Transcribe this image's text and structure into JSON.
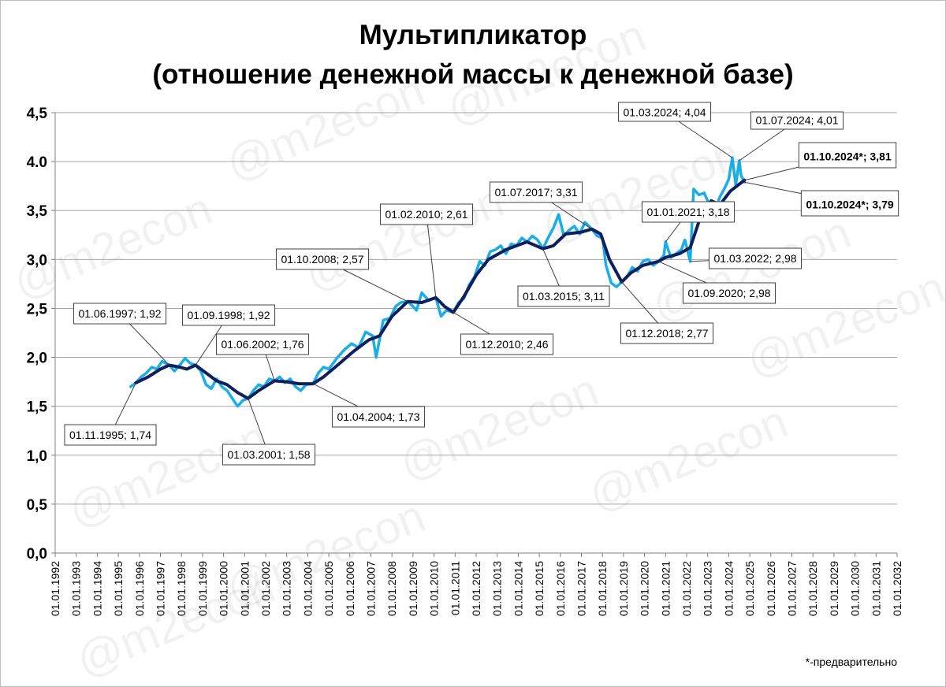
{
  "colors": {
    "raw_series": "#1aaee8",
    "trend_series": "#0e1f5e",
    "grid": "#a6a6a6",
    "axis": "#808080",
    "highlight_text": "#1aaee8"
  },
  "watermark": "@m2econ",
  "footnote": "*-предварительно",
  "chart_data": {
    "type": "line",
    "title": "Мультипликатор",
    "subtitle": "(отношение денежной массы к денежной базе)",
    "xlabel": "",
    "ylabel": "",
    "ylim": [
      0,
      4.5
    ],
    "xlim": [
      "01.01.1992",
      "01.01.2032"
    ],
    "grid": true,
    "legend": "none",
    "y_ticks": [
      "0,0",
      "0,5",
      "1,0",
      "1,5",
      "2,0",
      "2,5",
      "3,0",
      "3,5",
      "4.0",
      "4,5"
    ],
    "x_ticks": [
      "01.01.1992",
      "01.01.1993",
      "01.01.1994",
      "01.01.1995",
      "01.01.1996",
      "01.01.1997",
      "01.01.1998",
      "01.01.1999",
      "01.01.2000",
      "01.01.2001",
      "01.01.2002",
      "01.01.2003",
      "01.01.2004",
      "01.01.2005",
      "01.01.2006",
      "01.01.2007",
      "01.01.2008",
      "01.01.2009",
      "01.01.2010",
      "01.01.2011",
      "01.01.2012",
      "01.01.2013",
      "01.01.2014",
      "01.01.2015",
      "01.01.2016",
      "01.01.2017",
      "01.01.2018",
      "01.01.2019",
      "01.01.2020",
      "01.01.2021",
      "01.01.2022",
      "01.01.2023",
      "01.01.2024",
      "01.01.2025",
      "01.01.2026",
      "01.01.2027",
      "01.01.2028",
      "01.01.2029",
      "01.01.2030",
      "01.01.2031",
      "01.01.2032"
    ],
    "series": [
      {
        "role": "monthly",
        "color": "#1aaee8",
        "points": [
          [
            "1995-08",
            1.7
          ],
          [
            "1995-11",
            1.74
          ],
          [
            "1996-02",
            1.8
          ],
          [
            "1996-05",
            1.84
          ],
          [
            "1996-08",
            1.9
          ],
          [
            "1996-11",
            1.88
          ],
          [
            "1997-02",
            1.96
          ],
          [
            "1997-06",
            1.92
          ],
          [
            "1997-09",
            1.86
          ],
          [
            "1997-12",
            1.92
          ],
          [
            "1998-03",
            1.99
          ],
          [
            "1998-06",
            1.94
          ],
          [
            "1998-09",
            1.92
          ],
          [
            "1998-12",
            1.86
          ],
          [
            "1999-03",
            1.72
          ],
          [
            "1999-06",
            1.68
          ],
          [
            "1999-09",
            1.78
          ],
          [
            "1999-12",
            1.7
          ],
          [
            "2000-03",
            1.66
          ],
          [
            "2000-06",
            1.58
          ],
          [
            "2000-09",
            1.5
          ],
          [
            "2000-12",
            1.56
          ],
          [
            "2001-03",
            1.58
          ],
          [
            "2001-06",
            1.66
          ],
          [
            "2001-09",
            1.72
          ],
          [
            "2001-12",
            1.7
          ],
          [
            "2002-03",
            1.78
          ],
          [
            "2002-06",
            1.76
          ],
          [
            "2002-09",
            1.8
          ],
          [
            "2002-12",
            1.74
          ],
          [
            "2003-03",
            1.78
          ],
          [
            "2003-06",
            1.7
          ],
          [
            "2003-09",
            1.66
          ],
          [
            "2003-12",
            1.72
          ],
          [
            "2004-04",
            1.73
          ],
          [
            "2004-07",
            1.84
          ],
          [
            "2004-10",
            1.9
          ],
          [
            "2005-01",
            1.88
          ],
          [
            "2005-06",
            2.0
          ],
          [
            "2005-10",
            2.08
          ],
          [
            "2006-02",
            2.14
          ],
          [
            "2006-06",
            2.1
          ],
          [
            "2006-10",
            2.26
          ],
          [
            "2007-02",
            2.22
          ],
          [
            "2007-04",
            2.0
          ],
          [
            "2007-08",
            2.38
          ],
          [
            "2007-12",
            2.4
          ],
          [
            "2008-03",
            2.52
          ],
          [
            "2008-06",
            2.56
          ],
          [
            "2008-10",
            2.57
          ],
          [
            "2009-01",
            2.52
          ],
          [
            "2009-03",
            2.48
          ],
          [
            "2009-06",
            2.66
          ],
          [
            "2009-10",
            2.58
          ],
          [
            "2010-02",
            2.61
          ],
          [
            "2010-05",
            2.42
          ],
          [
            "2010-08",
            2.48
          ],
          [
            "2010-12",
            2.46
          ],
          [
            "2011-03",
            2.56
          ],
          [
            "2011-06",
            2.6
          ],
          [
            "2011-09",
            2.74
          ],
          [
            "2011-12",
            2.82
          ],
          [
            "2012-03",
            2.98
          ],
          [
            "2012-06",
            2.94
          ],
          [
            "2012-09",
            3.08
          ],
          [
            "2012-12",
            3.1
          ],
          [
            "2013-03",
            3.14
          ],
          [
            "2013-06",
            3.06
          ],
          [
            "2013-09",
            3.16
          ],
          [
            "2013-12",
            3.14
          ],
          [
            "2014-03",
            3.22
          ],
          [
            "2014-06",
            3.18
          ],
          [
            "2014-09",
            3.24
          ],
          [
            "2014-12",
            3.2
          ],
          [
            "2015-03",
            3.11
          ],
          [
            "2015-06",
            3.22
          ],
          [
            "2015-09",
            3.32
          ],
          [
            "2015-12",
            3.46
          ],
          [
            "2016-03",
            3.24
          ],
          [
            "2016-06",
            3.3
          ],
          [
            "2016-09",
            3.34
          ],
          [
            "2016-12",
            3.26
          ],
          [
            "2017-03",
            3.38
          ],
          [
            "2017-07",
            3.31
          ],
          [
            "2017-10",
            3.24
          ],
          [
            "2018-01",
            3.22
          ],
          [
            "2018-03",
            2.94
          ],
          [
            "2018-06",
            2.76
          ],
          [
            "2018-09",
            2.72
          ],
          [
            "2018-12",
            2.77
          ],
          [
            "2019-03",
            2.82
          ],
          [
            "2019-06",
            2.92
          ],
          [
            "2019-09",
            2.88
          ],
          [
            "2019-12",
            2.98
          ],
          [
            "2020-03",
            3.0
          ],
          [
            "2020-06",
            2.94
          ],
          [
            "2020-09",
            2.98
          ],
          [
            "2020-12",
            3.04
          ],
          [
            "2021-01",
            3.18
          ],
          [
            "2021-04",
            3.02
          ],
          [
            "2021-07",
            3.06
          ],
          [
            "2021-10",
            3.1
          ],
          [
            "2021-12",
            3.2
          ],
          [
            "2022-03",
            2.98
          ],
          [
            "2022-05",
            3.72
          ],
          [
            "2022-08",
            3.66
          ],
          [
            "2022-11",
            3.68
          ],
          [
            "2023-02",
            3.56
          ],
          [
            "2023-05",
            3.5
          ],
          [
            "2023-08",
            3.64
          ],
          [
            "2023-11",
            3.74
          ],
          [
            "2024-01",
            3.82
          ],
          [
            "2024-03",
            4.04
          ],
          [
            "2024-05",
            3.76
          ],
          [
            "2024-07",
            4.01
          ],
          [
            "2024-08",
            3.86
          ],
          [
            "2024-10",
            3.79
          ]
        ]
      },
      {
        "role": "trend",
        "color": "#0e1f5e",
        "points": [
          [
            "1995-11",
            1.74
          ],
          [
            "1996-06",
            1.8
          ],
          [
            "1997-01",
            1.88
          ],
          [
            "1997-06",
            1.92
          ],
          [
            "1997-12",
            1.9
          ],
          [
            "1998-04",
            1.88
          ],
          [
            "1998-09",
            1.92
          ],
          [
            "1999-03",
            1.84
          ],
          [
            "1999-09",
            1.76
          ],
          [
            "2000-03",
            1.72
          ],
          [
            "2000-09",
            1.64
          ],
          [
            "2001-03",
            1.58
          ],
          [
            "2001-09",
            1.66
          ],
          [
            "2002-06",
            1.76
          ],
          [
            "2003-01",
            1.75
          ],
          [
            "2003-08",
            1.73
          ],
          [
            "2004-04",
            1.73
          ],
          [
            "2004-10",
            1.8
          ],
          [
            "2005-06",
            1.92
          ],
          [
            "2006-03",
            2.06
          ],
          [
            "2006-12",
            2.18
          ],
          [
            "2007-06",
            2.22
          ],
          [
            "2008-01",
            2.42
          ],
          [
            "2008-10",
            2.57
          ],
          [
            "2009-06",
            2.56
          ],
          [
            "2010-02",
            2.61
          ],
          [
            "2010-07",
            2.52
          ],
          [
            "2010-12",
            2.46
          ],
          [
            "2011-06",
            2.62
          ],
          [
            "2012-01",
            2.84
          ],
          [
            "2012-08",
            3.0
          ],
          [
            "2013-06",
            3.1
          ],
          [
            "2014-06",
            3.18
          ],
          [
            "2015-03",
            3.11
          ],
          [
            "2015-09",
            3.14
          ],
          [
            "2016-04",
            3.26
          ],
          [
            "2017-01",
            3.28
          ],
          [
            "2017-07",
            3.31
          ],
          [
            "2017-12",
            3.26
          ],
          [
            "2018-05",
            3.0
          ],
          [
            "2018-12",
            2.77
          ],
          [
            "2019-05",
            2.86
          ],
          [
            "2019-12",
            2.94
          ],
          [
            "2020-09",
            2.98
          ],
          [
            "2021-01",
            3.02
          ],
          [
            "2021-09",
            3.06
          ],
          [
            "2022-03",
            3.12
          ],
          [
            "2022-09",
            3.44
          ],
          [
            "2023-03",
            3.6
          ],
          [
            "2023-08",
            3.56
          ],
          [
            "2024-02",
            3.7
          ],
          [
            "2024-10",
            3.81
          ]
        ]
      }
    ],
    "annotations": [
      {
        "text": "01.11.1995; 1,74",
        "date": "1995-11",
        "value": 1.74,
        "style": "boxed"
      },
      {
        "text": "01.06.1997; 1,92",
        "date": "1997-06",
        "value": 1.92,
        "style": "boxed"
      },
      {
        "text": "01.09.1998; 1,92",
        "date": "1998-09",
        "value": 1.92,
        "style": "boxed"
      },
      {
        "text": "01.03.2001; 1,58",
        "date": "2001-03",
        "value": 1.58,
        "style": "boxed"
      },
      {
        "text": "01.06.2002; 1,76",
        "date": "2002-06",
        "value": 1.76,
        "style": "boxed"
      },
      {
        "text": "01.04.2004; 1,73",
        "date": "2004-04",
        "value": 1.73,
        "style": "boxed"
      },
      {
        "text": "01.10.2008; 2,57",
        "date": "2008-10",
        "value": 2.57,
        "style": "boxed"
      },
      {
        "text": "01.02.2010; 2,61",
        "date": "2010-02",
        "value": 2.61,
        "style": "boxed"
      },
      {
        "text": "01.12.2010; 2,46",
        "date": "2010-12",
        "value": 2.46,
        "style": "boxed"
      },
      {
        "text": "01.03.2015; 3,11",
        "date": "2015-03",
        "value": 3.11,
        "style": "boxed"
      },
      {
        "text": "01.07.2017; 3,31",
        "date": "2017-07",
        "value": 3.31,
        "style": "boxed"
      },
      {
        "text": "01.12.2018; 2,77",
        "date": "2018-12",
        "value": 2.77,
        "style": "boxed"
      },
      {
        "text": "01.09.2020; 2,98",
        "date": "2020-09",
        "value": 2.98,
        "style": "boxed"
      },
      {
        "text": "01.01.2021; 3,18",
        "date": "2021-01",
        "value": 3.18,
        "style": "boxed"
      },
      {
        "text": "01.03.2022; 2,98",
        "date": "2022-03",
        "value": 2.98,
        "style": "boxed"
      },
      {
        "text": "01.03.2024; 4,04",
        "date": "2024-03",
        "value": 4.04,
        "style": "highlight"
      },
      {
        "text": "01.07.2024; 4,01",
        "date": "2024-07",
        "value": 4.01,
        "style": "highlight-small"
      },
      {
        "text": "01.10.2024*; 3,81",
        "date": "2024-10",
        "value": 3.81,
        "style": "bold-large"
      },
      {
        "text": "01.10.2024*; 3,79",
        "date": "2024-10",
        "value": 3.79,
        "style": "highlight-large"
      }
    ]
  }
}
